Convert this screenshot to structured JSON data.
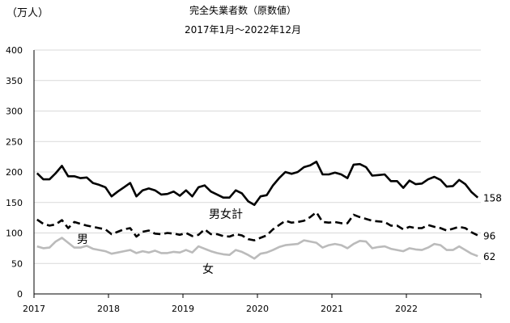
{
  "chart_data": {
    "type": "line",
    "title": "完全失業者数（原数値）",
    "subtitle": "2017年1月～2022年12月",
    "ylabel": "（万人）",
    "ylim": [
      0,
      400
    ],
    "yticks": [
      0,
      50,
      100,
      150,
      200,
      250,
      300,
      350,
      400
    ],
    "xtick_labels": [
      "2017",
      "2018",
      "2019",
      "2020",
      "2021",
      "2022"
    ],
    "x_start": "2017-01",
    "x_end": "2022-12",
    "grid": "horizontal",
    "series": [
      {
        "name": "男女計",
        "color": "#000000",
        "style": "solid",
        "end_label": "158",
        "values": [
          198,
          188,
          188,
          198,
          210,
          193,
          193,
          190,
          191,
          182,
          179,
          175,
          160,
          168,
          175,
          182,
          160,
          170,
          173,
          170,
          163,
          164,
          168,
          161,
          170,
          160,
          175,
          178,
          168,
          163,
          158,
          158,
          170,
          165,
          152,
          146,
          160,
          162,
          178,
          190,
          200,
          197,
          200,
          208,
          211,
          217,
          196,
          196,
          199,
          196,
          190,
          212,
          213,
          208,
          194,
          195,
          196,
          185,
          185,
          174,
          186,
          180,
          181,
          188,
          192,
          187,
          176,
          177,
          187,
          180,
          167,
          158
        ]
      },
      {
        "name": "男",
        "color": "#000000",
        "style": "dashed",
        "end_label": "96",
        "values": [
          122,
          115,
          112,
          114,
          121,
          108,
          118,
          115,
          112,
          110,
          108,
          106,
          98,
          102,
          106,
          108,
          94,
          102,
          104,
          99,
          98,
          100,
          99,
          97,
          100,
          95,
          97,
          106,
          98,
          98,
          95,
          94,
          98,
          96,
          90,
          88,
          92,
          96,
          106,
          113,
          120,
          117,
          118,
          120,
          126,
          134,
          118,
          117,
          118,
          116,
          116,
          130,
          126,
          123,
          120,
          119,
          118,
          112,
          112,
          106,
          110,
          108,
          108,
          113,
          110,
          108,
          104,
          107,
          110,
          108,
          101,
          96
        ]
      },
      {
        "name": "女",
        "color": "#bbbbbb",
        "style": "solid",
        "end_label": "62",
        "values": [
          78,
          75,
          76,
          86,
          92,
          84,
          76,
          76,
          79,
          74,
          72,
          70,
          66,
          68,
          70,
          72,
          67,
          70,
          68,
          71,
          67,
          67,
          69,
          68,
          72,
          68,
          78,
          74,
          70,
          67,
          65,
          64,
          72,
          69,
          64,
          58,
          66,
          68,
          72,
          77,
          80,
          81,
          82,
          88,
          86,
          84,
          76,
          80,
          82,
          80,
          75,
          82,
          87,
          86,
          75,
          77,
          78,
          74,
          72,
          70,
          75,
          73,
          72,
          76,
          82,
          80,
          72,
          72,
          78,
          72,
          66,
          62
        ]
      }
    ],
    "annotations": [
      "男女計",
      "男",
      "女"
    ]
  }
}
